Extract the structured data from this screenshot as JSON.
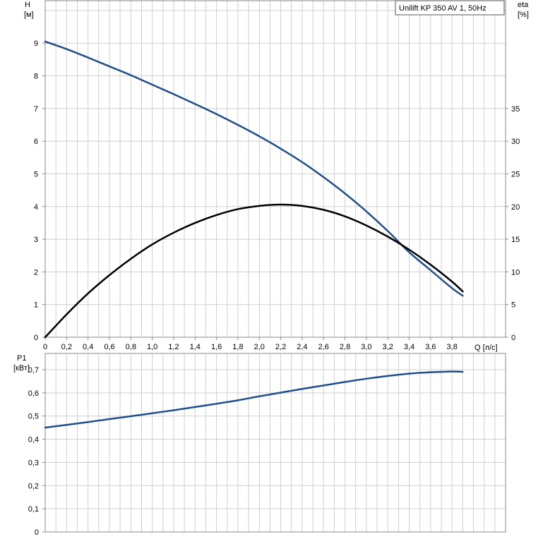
{
  "chart_data": [
    {
      "type": "line",
      "title": "Unilift KP 350 AV 1, 50Hz",
      "xlabel": "Q [л/с]",
      "xlim": [
        0,
        4.3
      ],
      "x_ticks": [
        "0",
        "0,2",
        "0,4",
        "0,6",
        "0,8",
        "1,0",
        "1,2",
        "1,4",
        "1,6",
        "1,8",
        "2,0",
        "2,2",
        "2,4",
        "2,6",
        "2,8",
        "3,0",
        "3,2",
        "3,4",
        "3,6",
        "3,8"
      ],
      "ylabel_left": "H",
      "ylabel_left_unit": "[м]",
      "ylim_left": [
        0,
        10.3
      ],
      "y_ticks_left": [
        "0",
        "1",
        "2",
        "3",
        "4",
        "5",
        "6",
        "7",
        "8",
        "9"
      ],
      "ylabel_right": "eta",
      "ylabel_right_unit": "[%]",
      "ylim_right": [
        0,
        51.5
      ],
      "y_ticks_right": [
        "0",
        "5",
        "10",
        "15",
        "20",
        "25",
        "30",
        "35"
      ],
      "grid": true,
      "series": [
        {
          "name": "H",
          "axis": "left",
          "color": "#1f4e8c",
          "x": [
            0,
            0.2,
            0.4,
            0.6,
            0.8,
            1.0,
            1.2,
            1.4,
            1.6,
            1.8,
            2.0,
            2.2,
            2.4,
            2.6,
            2.8,
            3.0,
            3.2,
            3.4,
            3.6,
            3.8,
            3.9
          ],
          "y": [
            9.05,
            8.82,
            8.56,
            8.29,
            8.02,
            7.73,
            7.44,
            7.14,
            6.83,
            6.5,
            6.15,
            5.77,
            5.36,
            4.9,
            4.4,
            3.85,
            3.25,
            2.6,
            2.05,
            1.5,
            1.27
          ]
        },
        {
          "name": "eta",
          "axis": "right",
          "color": "#000000",
          "x": [
            0,
            0.2,
            0.4,
            0.6,
            0.8,
            1.0,
            1.2,
            1.4,
            1.6,
            1.8,
            2.0,
            2.2,
            2.4,
            2.6,
            2.8,
            3.0,
            3.2,
            3.4,
            3.6,
            3.8,
            3.9
          ],
          "y": [
            0,
            3.5,
            6.7,
            9.5,
            12.0,
            14.2,
            16.0,
            17.5,
            18.7,
            19.6,
            20.1,
            20.3,
            20.1,
            19.5,
            18.5,
            17.1,
            15.4,
            13.4,
            11.1,
            8.5,
            7.0
          ]
        }
      ]
    },
    {
      "type": "line",
      "xlim": [
        0,
        4.3
      ],
      "ylabel": "P1",
      "ylabel_unit": "[кВт]",
      "ylim": [
        0,
        0.77
      ],
      "y_ticks": [
        "0",
        "0,1",
        "0,2",
        "0,3",
        "0,4",
        "0,5",
        "0,6",
        "0,7"
      ],
      "grid": true,
      "series": [
        {
          "name": "P1",
          "color": "#1f4e8c",
          "x": [
            0,
            0.2,
            0.4,
            0.6,
            0.8,
            1.0,
            1.2,
            1.4,
            1.6,
            1.8,
            2.0,
            2.2,
            2.4,
            2.6,
            2.8,
            3.0,
            3.2,
            3.4,
            3.6,
            3.8,
            3.9
          ],
          "y": [
            0.45,
            0.462,
            0.474,
            0.487,
            0.499,
            0.512,
            0.525,
            0.539,
            0.553,
            0.568,
            0.585,
            0.601,
            0.617,
            0.632,
            0.647,
            0.661,
            0.673,
            0.683,
            0.689,
            0.692,
            0.691
          ]
        }
      ]
    }
  ]
}
